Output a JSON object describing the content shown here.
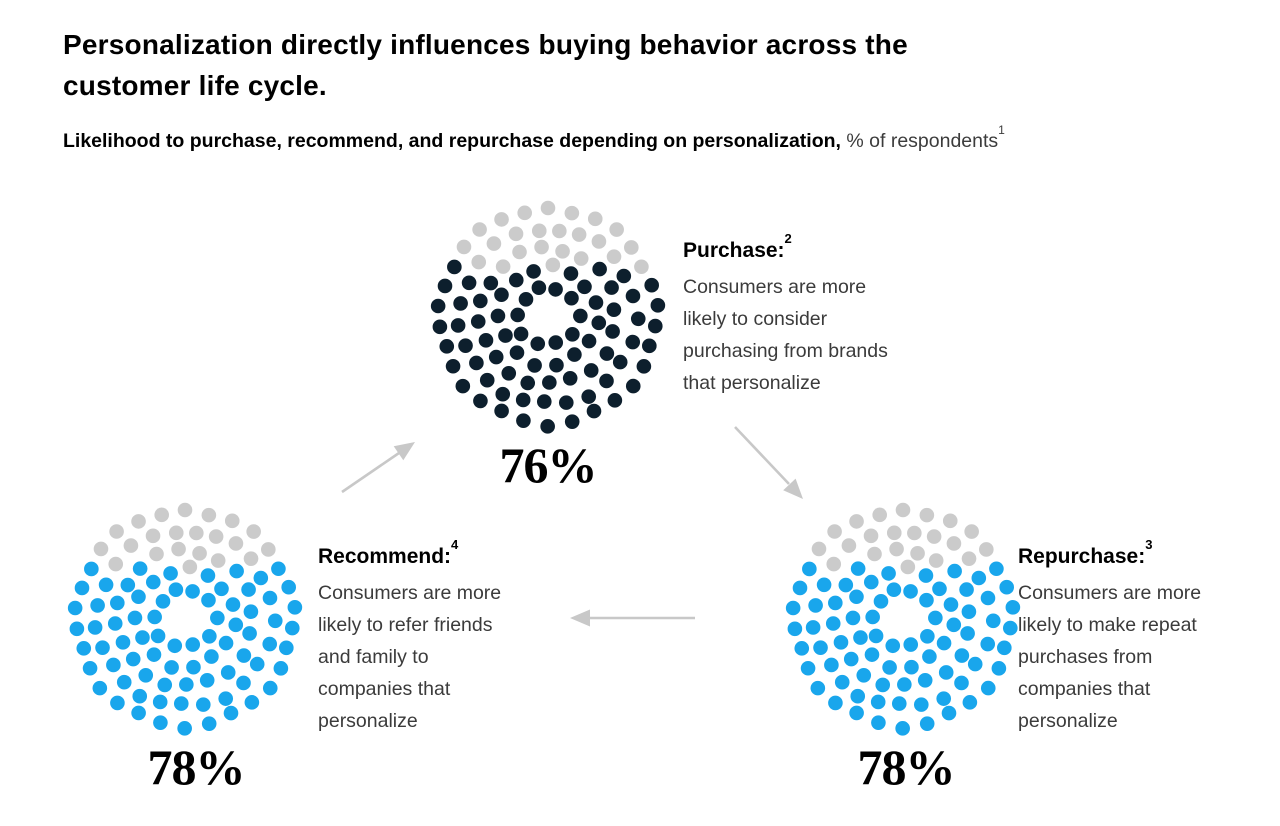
{
  "page": {
    "title": "Personalization directly influences buying behavior across the\ncustomer life cycle.",
    "subtitle_bold": "Likelihood to purchase, recommend, and repurchase depending on personalization,",
    "subtitle_regular": " % of respondents",
    "subtitle_footnote": "1"
  },
  "colors": {
    "dark_dot": "#0d1f2d",
    "blue_dot": "#19a6ec",
    "remainder_dot": "#cbcbcb",
    "arrow": "#c8c8c8",
    "heading_text": "#000000",
    "body_text": "#3b3b3b"
  },
  "chart_data": [
    {
      "type": "pictogram_donut",
      "id": "purchase",
      "heading": "Purchase:",
      "footnote_marker": "2",
      "percent": 76,
      "total_dots": 100,
      "value_label": "76%",
      "dot_color": "#0d1f2d",
      "description": "Consumers are more\nlikely to consider\npurchasing from brands\nthat personalize"
    },
    {
      "type": "pictogram_donut",
      "id": "recommend",
      "heading": "Recommend:",
      "footnote_marker": "4",
      "percent": 78,
      "total_dots": 100,
      "value_label": "78%",
      "dot_color": "#19a6ec",
      "description": "Consumers are more\nlikely to refer friends\nand family to\ncompanies that\npersonalize"
    },
    {
      "type": "pictogram_donut",
      "id": "repurchase",
      "heading": "Repurchase:",
      "footnote_marker": "3",
      "percent": 78,
      "total_dots": 100,
      "value_label": "78%",
      "dot_color": "#19a6ec",
      "description": "Consumers are more\nlikely to make repeat\npurchases from\ncompanies that\npersonalize"
    }
  ],
  "flow": {
    "arrows": [
      {
        "from": "recommend",
        "to": "purchase"
      },
      {
        "from": "purchase",
        "to": "repurchase"
      },
      {
        "from": "repurchase",
        "to": "recommend"
      }
    ]
  }
}
